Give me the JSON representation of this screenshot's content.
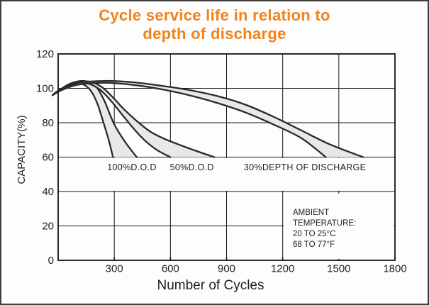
{
  "title": {
    "line1": "Cycle service life in relation to",
    "line2": "depth of discharge",
    "color": "#f0831c"
  },
  "axes": {
    "x_label": "Number of Cycles",
    "y_label": "CAPACITY(%)"
  },
  "annotation": {
    "lines": [
      "AMBIENT TEMPERATURE:",
      "20 TO 25°C",
      "68 TO 77°F"
    ]
  },
  "colors": {
    "title": "#f0831c",
    "text": "#1d1d28",
    "grid": "#151515",
    "curve": "#2a2a2a",
    "band_fill": "#e8e8e8",
    "background": "#fdfdfd",
    "frame": "#3f3f3f"
  },
  "chart_data": {
    "type": "area",
    "title": "Cycle service life in relation to depth of discharge",
    "xlabel": "Number of Cycles",
    "ylabel": "CAPACITY(%)",
    "xlim": [
      0,
      1800
    ],
    "ylim": [
      0,
      120
    ],
    "x_ticks": [
      300,
      600,
      900,
      1200,
      1500,
      1800
    ],
    "y_ticks": [
      0,
      20,
      40,
      60,
      80,
      100,
      120
    ],
    "grid": true,
    "legend_position": "inline-labels",
    "series": [
      {
        "name": "100%D.O.D",
        "label_x": 394,
        "label_capacity": 54,
        "upper": [
          [
            -30,
            96
          ],
          [
            0,
            98.5
          ],
          [
            60,
            102.5
          ],
          [
            120,
            104.3
          ],
          [
            170,
            103.3
          ],
          [
            210,
            100
          ],
          [
            250,
            92
          ],
          [
            300,
            79
          ],
          [
            360,
            68.5
          ],
          [
            420,
            60
          ]
        ],
        "lower": [
          [
            -30,
            96
          ],
          [
            0,
            98
          ],
          [
            50,
            101.5
          ],
          [
            100,
            103
          ],
          [
            140,
            102
          ],
          [
            175,
            98.5
          ],
          [
            210,
            91
          ],
          [
            245,
            79
          ],
          [
            270,
            70
          ],
          [
            293,
            60
          ]
        ]
      },
      {
        "name": "50%D.O.D",
        "label_x": 715,
        "label_capacity": 54,
        "upper": [
          [
            -30,
            96
          ],
          [
            0,
            98.5
          ],
          [
            80,
            103
          ],
          [
            160,
            104
          ],
          [
            230,
            101
          ],
          [
            290,
            95
          ],
          [
            350,
            88
          ],
          [
            420,
            81
          ],
          [
            490,
            75
          ],
          [
            560,
            71
          ],
          [
            640,
            67.5
          ],
          [
            740,
            63.5
          ],
          [
            834,
            60
          ]
        ],
        "lower": [
          [
            -30,
            96
          ],
          [
            0,
            98
          ],
          [
            70,
            102
          ],
          [
            150,
            103
          ],
          [
            220,
            99.5
          ],
          [
            280,
            93
          ],
          [
            340,
            85
          ],
          [
            400,
            77
          ],
          [
            460,
            70
          ],
          [
            530,
            64
          ],
          [
            599,
            60
          ]
        ]
      },
      {
        "name": "30%DEPTH OF DISCHARGE",
        "label_x": 1319,
        "label_capacity": 54,
        "upper": [
          [
            -30,
            96
          ],
          [
            0,
            98.5
          ],
          [
            100,
            103
          ],
          [
            250,
            104.3
          ],
          [
            400,
            103.5
          ],
          [
            550,
            101.5
          ],
          [
            700,
            99
          ],
          [
            850,
            95.5
          ],
          [
            1000,
            90.5
          ],
          [
            1150,
            83.5
          ],
          [
            1300,
            75.5
          ],
          [
            1450,
            67.5
          ],
          [
            1630,
            60
          ]
        ],
        "lower": [
          [
            -30,
            96
          ],
          [
            0,
            98
          ],
          [
            100,
            102
          ],
          [
            250,
            103.2
          ],
          [
            400,
            102
          ],
          [
            550,
            99.5
          ],
          [
            700,
            96
          ],
          [
            850,
            91.5
          ],
          [
            1000,
            86
          ],
          [
            1150,
            79
          ],
          [
            1300,
            71
          ],
          [
            1430,
            60
          ]
        ]
      }
    ]
  }
}
